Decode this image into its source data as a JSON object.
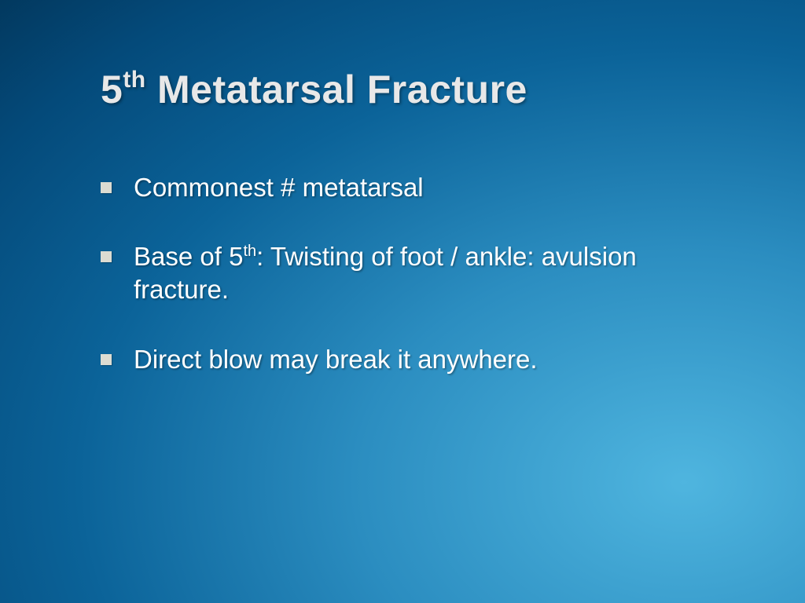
{
  "slide": {
    "title_prefix": "5",
    "title_sup": "th",
    "title_suffix": " Metatarsal Fracture",
    "bullets": [
      {
        "html": "Commonest # metatarsal"
      },
      {
        "html": "Base of 5<sup>th</sup>: Twisting of foot / ankle: avulsion fracture."
      },
      {
        "html": "Direct blow may break it anywhere."
      }
    ],
    "styling": {
      "background_gradient": {
        "type": "radial",
        "center": "85% 80%",
        "stops": [
          "#4fb5df",
          "#2b8dc0",
          "#0b6399",
          "#044a7a",
          "#023559",
          "#012844"
        ]
      },
      "title_color": "#e8e8e8",
      "title_fontsize": 50,
      "body_color": "#ffffff",
      "body_fontsize": 33,
      "bullet_marker_color": "#dcdcd2",
      "bullet_marker_size": 14,
      "text_shadow": "rgba(0,0,0,0.35)",
      "font_family": "Tahoma"
    }
  }
}
